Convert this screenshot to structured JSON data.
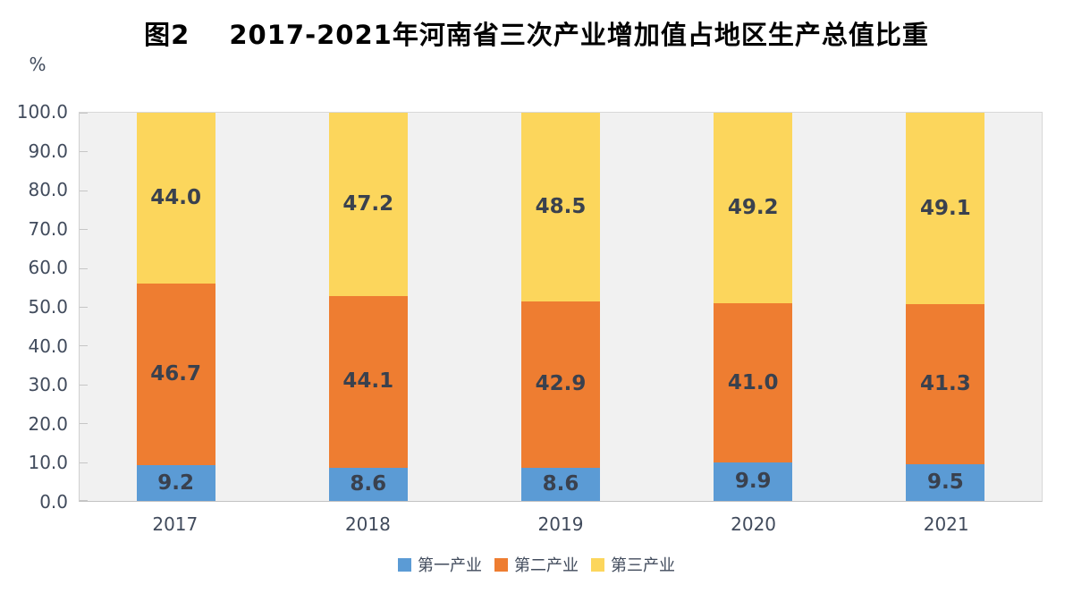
{
  "figure": {
    "title_prefix": "图2",
    "title_main": "2017-2021年河南省三次产业增加值占地区生产总值比重"
  },
  "chart_data": {
    "type": "bar",
    "stacked": true,
    "title": "图2 2017-2021年河南省三次产业增加值占地区生产总值比重",
    "xlabel": "",
    "ylabel": "%",
    "ylim": [
      0,
      100
    ],
    "ytick_labels": [
      "0.0",
      "10.0",
      "20.0",
      "30.0",
      "40.0",
      "50.0",
      "60.0",
      "70.0",
      "80.0",
      "90.0",
      "100.0"
    ],
    "categories": [
      "2017",
      "2018",
      "2019",
      "2020",
      "2021"
    ],
    "series": [
      {
        "name": "第一产业",
        "color": "#5B9BD5",
        "values": [
          9.2,
          8.6,
          8.6,
          9.9,
          9.5
        ]
      },
      {
        "name": "第二产业",
        "color": "#EE7D31",
        "values": [
          46.7,
          44.1,
          42.9,
          41.0,
          41.3
        ]
      },
      {
        "name": "第三产业",
        "color": "#FCD65C",
        "values": [
          44.0,
          47.2,
          48.5,
          49.2,
          49.1
        ]
      }
    ],
    "value_label_decimals": 1,
    "legend_position": "bottom",
    "grid": false,
    "plot_background": "#F1F1F1"
  }
}
